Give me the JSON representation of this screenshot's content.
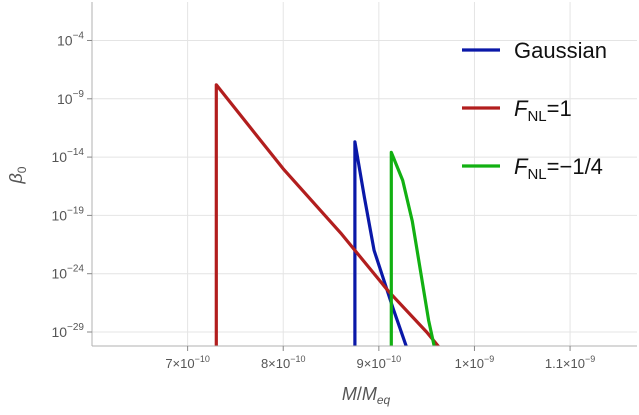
{
  "chart_data": {
    "type": "line",
    "xlabel_main": "M",
    "xlabel_sep": "/",
    "xlabel_sub_base": "M",
    "xlabel_sub": "eq",
    "ylabel_main": "β",
    "ylabel_sub": "0",
    "x_axis": {
      "scale": "linear",
      "range": [
        6e-10,
        1.17e-09
      ],
      "ticks": [
        {
          "value": 7e-10,
          "mantissa": "7",
          "exp": "−10"
        },
        {
          "value": 8e-10,
          "mantissa": "8",
          "exp": "−10"
        },
        {
          "value": 9e-10,
          "mantissa": "9",
          "exp": "−10"
        },
        {
          "value": 1e-09,
          "mantissa": "1",
          "exp": "−9"
        },
        {
          "value": 1.1e-09,
          "mantissa": "1.1",
          "exp": "−9"
        }
      ]
    },
    "y_axis": {
      "scale": "log",
      "range_exponent": [
        -30.2,
        -0.7
      ],
      "ticks": [
        {
          "exponent": -4,
          "label_base": "10",
          "label_exp": "−4"
        },
        {
          "exponent": -9,
          "label_base": "10",
          "label_exp": "−9"
        },
        {
          "exponent": -14,
          "label_base": "10",
          "label_exp": "−14"
        },
        {
          "exponent": -19,
          "label_base": "10",
          "label_exp": "−19"
        },
        {
          "exponent": -24,
          "label_base": "10",
          "label_exp": "−24"
        },
        {
          "exponent": -29,
          "label_base": "10",
          "label_exp": "−29"
        }
      ]
    },
    "grid": true,
    "legend_position": "top-right",
    "series": [
      {
        "legend_main": "Gaussian",
        "legend_sub": "",
        "legend_suffix": "",
        "color": "#0a18a8",
        "points": [
          {
            "x": 8.75e-10,
            "log10_y": -31.0
          },
          {
            "x": 8.75e-10,
            "log10_y": -12.7
          },
          {
            "x": 8.85e-10,
            "log10_y": -17.5
          },
          {
            "x": 8.95e-10,
            "log10_y": -22.0
          },
          {
            "x": 9.15e-10,
            "log10_y": -27.0
          },
          {
            "x": 9.32e-10,
            "log10_y": -31.0
          }
        ]
      },
      {
        "legend_main": "F",
        "legend_sub": "NL",
        "legend_suffix": "=1",
        "color": "#b21e1e",
        "points": [
          {
            "x": 7.3e-10,
            "log10_y": -31.0
          },
          {
            "x": 7.3e-10,
            "log10_y": -7.8
          },
          {
            "x": 8e-10,
            "log10_y": -15.0
          },
          {
            "x": 8.6e-10,
            "log10_y": -20.5
          },
          {
            "x": 9.1e-10,
            "log10_y": -25.5
          },
          {
            "x": 9.5e-10,
            "log10_y": -29.0
          },
          {
            "x": 9.7e-10,
            "log10_y": -31.0
          }
        ]
      },
      {
        "legend_main": "F",
        "legend_sub": "NL",
        "legend_suffix": "=−1/4",
        "color": "#12b012",
        "points": [
          {
            "x": 9.13e-10,
            "log10_y": -31.0
          },
          {
            "x": 9.13e-10,
            "log10_y": -13.6
          },
          {
            "x": 9.25e-10,
            "log10_y": -16.0
          },
          {
            "x": 9.35e-10,
            "log10_y": -19.5
          },
          {
            "x": 9.45e-10,
            "log10_y": -24.5
          },
          {
            "x": 9.52e-10,
            "log10_y": -28.0
          },
          {
            "x": 9.6e-10,
            "log10_y": -31.0
          }
        ]
      }
    ]
  }
}
